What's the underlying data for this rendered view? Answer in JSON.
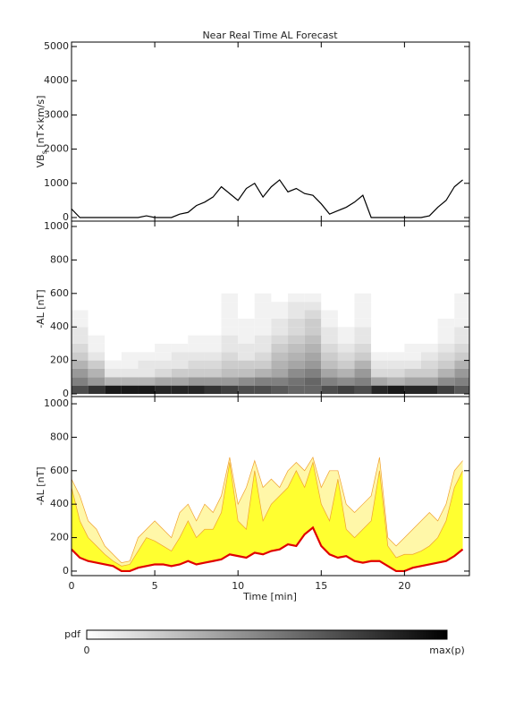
{
  "chart_data": [
    {
      "type": "line",
      "title": "Near Real Time AL Forecast",
      "ylabel": [
        "VB",
        "s",
        " [nT×km/s]"
      ],
      "x": [
        0,
        0.5,
        1,
        1.5,
        2,
        2.5,
        3,
        3.5,
        4,
        4.5,
        5,
        5.5,
        6,
        6.5,
        7,
        7.5,
        8,
        8.5,
        9,
        9.5,
        10,
        10.5,
        11,
        11.5,
        12,
        12.5,
        13,
        13.5,
        14,
        14.5,
        15,
        15.5,
        16,
        16.5,
        17,
        17.5,
        18,
        18.5,
        19,
        19.5,
        20,
        20.5,
        21,
        21.5,
        22,
        22.5,
        23,
        23.5
      ],
      "values": [
        250,
        0,
        0,
        0,
        0,
        0,
        0,
        0,
        0,
        50,
        0,
        0,
        0,
        100,
        150,
        350,
        450,
        600,
        900,
        700,
        500,
        850,
        1000,
        600,
        900,
        1100,
        750,
        850,
        700,
        650,
        400,
        100,
        200,
        300,
        450,
        650,
        0,
        0,
        0,
        0,
        0,
        0,
        0,
        50,
        300,
        500,
        900,
        1100
      ],
      "color": "#000000",
      "xlim": [
        0,
        23.9
      ],
      "xticks": [
        0,
        5,
        10,
        15,
        20
      ],
      "ylim": [
        -105,
        5130
      ],
      "yticks": [
        0,
        1000,
        2000,
        3000,
        4000,
        5000
      ]
    },
    {
      "type": "heatmap",
      "ylabel": "-AL [nT]",
      "x_bins": [
        0,
        1,
        2,
        3,
        4,
        5,
        6,
        7,
        8,
        9,
        10,
        11,
        12,
        13,
        14,
        15,
        16,
        17,
        18,
        19,
        20,
        21,
        22,
        23,
        24
      ],
      "y_bins": [
        0,
        50,
        100,
        150,
        200,
        250,
        300,
        350,
        400,
        450,
        500,
        550,
        600
      ],
      "values": [
        [
          0.7,
          0.5,
          0.4,
          0.3,
          0.2,
          0.15,
          0.1,
          0.1,
          0.05,
          0.05,
          0,
          0
        ],
        [
          0.8,
          0.4,
          0.3,
          0.2,
          0.1,
          0.05,
          0.05,
          0,
          0,
          0,
          0,
          0
        ],
        [
          0.9,
          0.3,
          0.1,
          0.05,
          0,
          0,
          0,
          0,
          0,
          0,
          0,
          0
        ],
        [
          0.9,
          0.3,
          0.1,
          0.05,
          0.05,
          0,
          0,
          0,
          0,
          0,
          0,
          0
        ],
        [
          0.9,
          0.3,
          0.1,
          0.1,
          0.05,
          0,
          0,
          0,
          0,
          0,
          0,
          0
        ],
        [
          0.85,
          0.35,
          0.15,
          0.1,
          0.05,
          0.05,
          0,
          0,
          0,
          0,
          0,
          0
        ],
        [
          0.85,
          0.35,
          0.2,
          0.1,
          0.1,
          0.05,
          0,
          0,
          0,
          0,
          0,
          0
        ],
        [
          0.85,
          0.4,
          0.2,
          0.15,
          0.1,
          0.05,
          0.05,
          0,
          0,
          0,
          0,
          0
        ],
        [
          0.8,
          0.4,
          0.2,
          0.15,
          0.1,
          0.05,
          0.05,
          0,
          0,
          0,
          0,
          0
        ],
        [
          0.75,
          0.4,
          0.25,
          0.2,
          0.15,
          0.1,
          0.1,
          0.05,
          0.05,
          0.05,
          0.05,
          0.05
        ],
        [
          0.7,
          0.45,
          0.25,
          0.2,
          0.1,
          0.1,
          0.05,
          0.05,
          0.05,
          0,
          0,
          0
        ],
        [
          0.7,
          0.5,
          0.3,
          0.2,
          0.15,
          0.1,
          0.1,
          0.05,
          0.05,
          0.05,
          0.05,
          0.05
        ],
        [
          0.65,
          0.5,
          0.35,
          0.3,
          0.25,
          0.2,
          0.15,
          0.1,
          0.1,
          0.05,
          0.05,
          0
        ],
        [
          0.6,
          0.55,
          0.45,
          0.35,
          0.3,
          0.25,
          0.2,
          0.15,
          0.15,
          0.1,
          0.1,
          0.05
        ],
        [
          0.6,
          0.6,
          0.5,
          0.4,
          0.35,
          0.3,
          0.25,
          0.2,
          0.2,
          0.15,
          0.1,
          0.05
        ],
        [
          0.7,
          0.5,
          0.35,
          0.25,
          0.2,
          0.15,
          0.1,
          0.1,
          0.05,
          0.05,
          0,
          0
        ],
        [
          0.75,
          0.45,
          0.3,
          0.2,
          0.15,
          0.1,
          0.05,
          0.05,
          0,
          0,
          0,
          0
        ],
        [
          0.7,
          0.5,
          0.4,
          0.3,
          0.2,
          0.15,
          0.1,
          0.1,
          0.05,
          0.05,
          0.05,
          0.05
        ],
        [
          0.85,
          0.35,
          0.15,
          0.1,
          0.05,
          0,
          0,
          0,
          0,
          0,
          0,
          0
        ],
        [
          0.9,
          0.3,
          0.15,
          0.1,
          0.05,
          0,
          0,
          0,
          0,
          0,
          0,
          0
        ],
        [
          0.85,
          0.35,
          0.2,
          0.1,
          0.05,
          0.05,
          0,
          0,
          0,
          0,
          0,
          0
        ],
        [
          0.85,
          0.35,
          0.2,
          0.15,
          0.1,
          0.05,
          0,
          0,
          0,
          0,
          0,
          0
        ],
        [
          0.75,
          0.45,
          0.3,
          0.2,
          0.15,
          0.1,
          0.05,
          0.05,
          0.05,
          0,
          0,
          0
        ],
        [
          0.65,
          0.5,
          0.4,
          0.3,
          0.2,
          0.15,
          0.1,
          0.1,
          0.05,
          0.05,
          0.05,
          0.05
        ]
      ],
      "xlim": [
        0,
        23.9
      ],
      "xticks": [
        0,
        5,
        10,
        15,
        20
      ],
      "ylim": [
        -16,
        1032
      ],
      "yticks": [
        0,
        200,
        400,
        600,
        800,
        1000
      ],
      "colorbar": {
        "label": "pdf",
        "clim": [
          0,
          1
        ],
        "ticks": [
          0,
          {
            "value": 1,
            "label": "max(p)"
          }
        ]
      }
    },
    {
      "type": "area",
      "ylabel": "-AL [nT]",
      "xlabel": "Time [min]",
      "x": [
        0,
        0.5,
        1,
        1.5,
        2,
        2.5,
        3,
        3.5,
        4,
        4.5,
        5,
        5.5,
        6,
        6.5,
        7,
        7.5,
        8,
        8.5,
        9,
        9.5,
        10,
        10.5,
        11,
        11.5,
        12,
        12.5,
        13,
        13.5,
        14,
        14.5,
        15,
        15.5,
        16,
        16.5,
        17,
        17.5,
        18,
        18.5,
        19,
        19.5,
        20,
        20.5,
        21,
        21.5,
        22,
        22.5,
        23,
        23.5
      ],
      "series": [
        {
          "style": "area",
          "color": "#fff7a8",
          "edge": "#f0a030",
          "values": [
            550,
            450,
            300,
            250,
            150,
            100,
            50,
            60,
            200,
            250,
            300,
            250,
            200,
            350,
            400,
            300,
            400,
            350,
            450,
            680,
            400,
            500,
            660,
            500,
            550,
            500,
            600,
            650,
            600,
            680,
            500,
            600,
            600,
            400,
            350,
            400,
            450,
            680,
            200,
            150,
            200,
            250,
            300,
            350,
            300,
            400,
            600,
            660
          ]
        },
        {
          "style": "area",
          "color": "#ffff30",
          "edge": "#f0a030",
          "values": [
            500,
            300,
            200,
            150,
            100,
            60,
            30,
            40,
            120,
            200,
            180,
            150,
            120,
            200,
            300,
            200,
            250,
            250,
            350,
            650,
            300,
            250,
            600,
            300,
            400,
            450,
            500,
            600,
            500,
            650,
            400,
            300,
            550,
            250,
            200,
            250,
            300,
            600,
            150,
            80,
            100,
            100,
            120,
            150,
            200,
            300,
            500,
            600
          ]
        },
        {
          "style": "line",
          "color": "#e00000",
          "values": [
            130,
            80,
            60,
            50,
            40,
            30,
            0,
            0,
            20,
            30,
            40,
            40,
            30,
            40,
            60,
            40,
            50,
            60,
            70,
            100,
            90,
            80,
            110,
            100,
            120,
            130,
            160,
            150,
            220,
            260,
            150,
            100,
            80,
            90,
            60,
            50,
            60,
            60,
            30,
            0,
            0,
            20,
            30,
            40,
            50,
            60,
            90,
            130
          ]
        }
      ],
      "xlim": [
        0,
        23.9
      ],
      "xticks": [
        0,
        5,
        10,
        15,
        20
      ],
      "ylim": [
        -27,
        1043
      ],
      "yticks": [
        0,
        200,
        400,
        600,
        800,
        1000
      ]
    }
  ]
}
